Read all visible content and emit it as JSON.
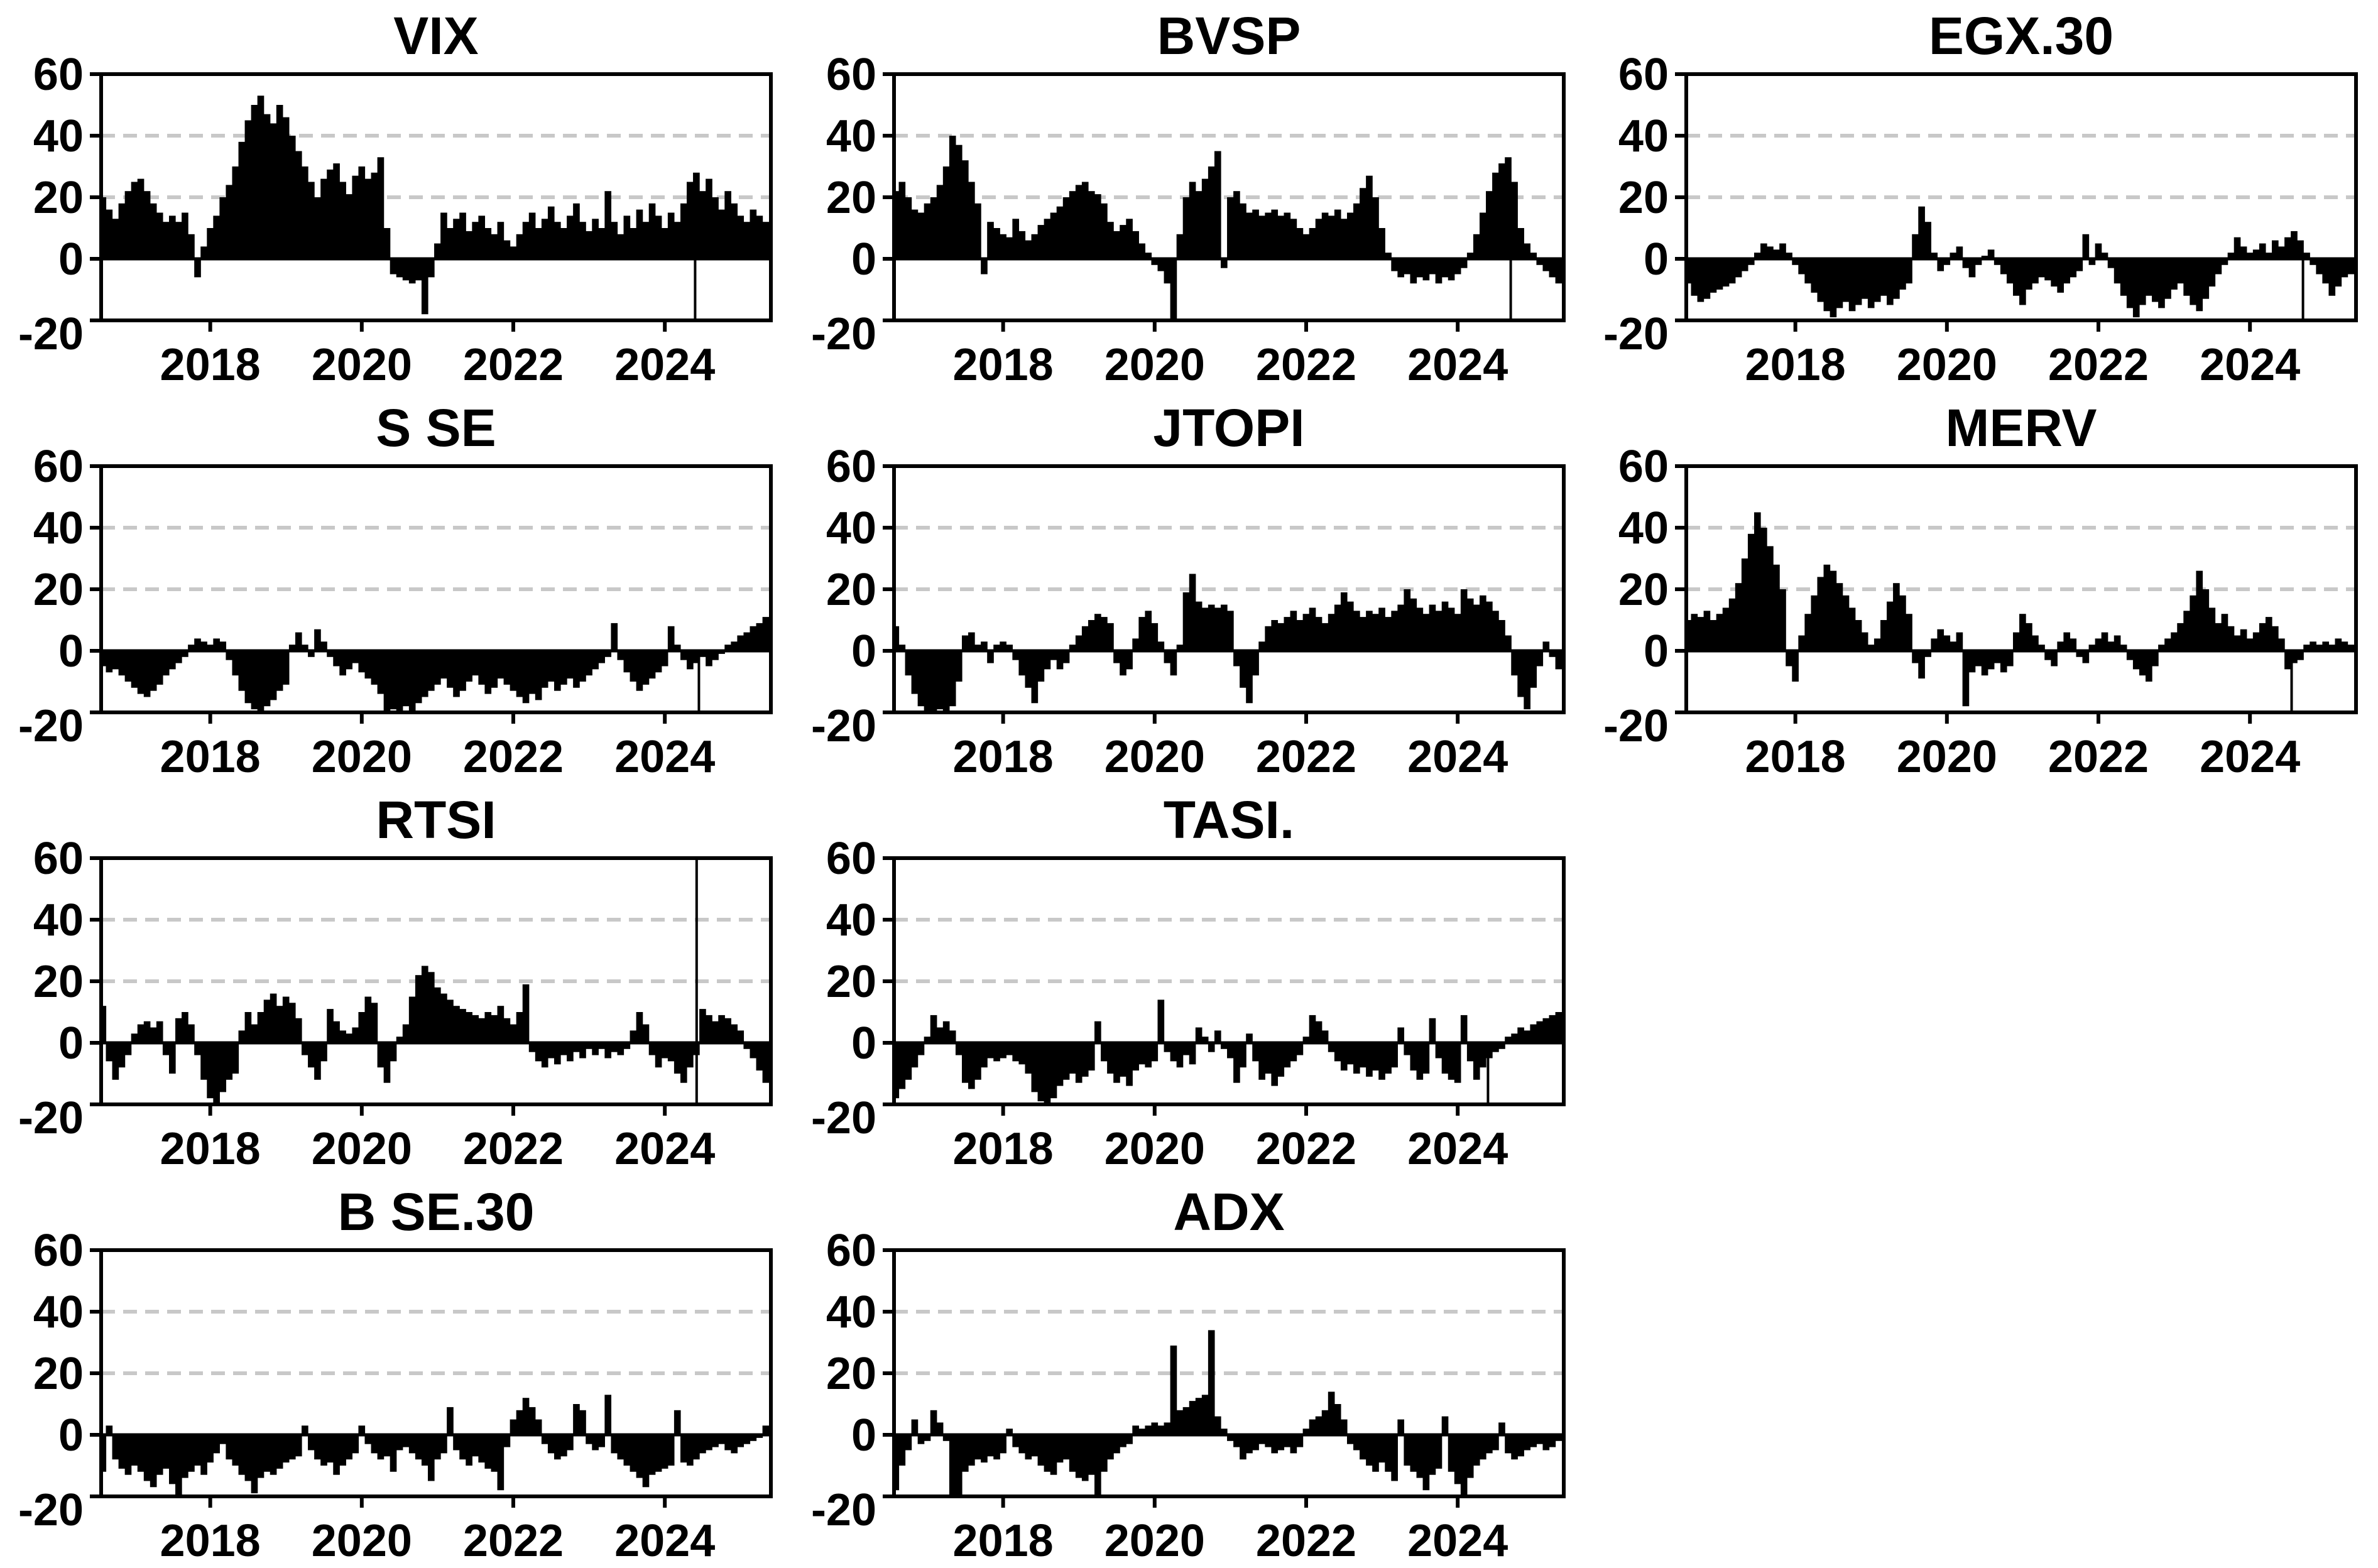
{
  "figure": {
    "background": "#ffffff",
    "bar_color": "#000000",
    "axis_color": "#000000",
    "grid_color": "#c8c8c8",
    "layout": {
      "rows": 4,
      "cols": 3
    }
  },
  "axes": {
    "xlim": [
      2016.56,
      2025.4
    ],
    "ylim": [
      -20,
      60
    ],
    "xticks": [
      2018,
      2020,
      2022,
      2024
    ],
    "yticks": [
      60,
      40,
      20,
      0,
      -20
    ],
    "grid_y": [
      40,
      20
    ],
    "grid_style": "dashed",
    "zero_line": 0
  },
  "chart_data": [
    {
      "type": "bar",
      "title": "VIX",
      "row": 0,
      "col": 0,
      "x_start": 2016.583,
      "x_step": 0.083333,
      "values": [
        20,
        16,
        13,
        18,
        22,
        25,
        26,
        22,
        18,
        15,
        12,
        14,
        12,
        15,
        8,
        -6,
        4,
        10,
        14,
        20,
        24,
        30,
        38,
        45,
        50,
        53,
        47,
        44,
        50,
        46,
        40,
        35,
        30,
        25,
        20,
        26,
        29,
        31,
        25,
        21,
        27,
        30,
        26,
        28,
        33,
        10,
        -5,
        -6,
        -7,
        -8,
        -7,
        -18,
        -6,
        5,
        15,
        10,
        13,
        15,
        9,
        12,
        14,
        10,
        8,
        12,
        6,
        4,
        8,
        12,
        15,
        10,
        13,
        17,
        12,
        10,
        14,
        18,
        12,
        9,
        13,
        10,
        22,
        12,
        8,
        14,
        10,
        16,
        12,
        18,
        14,
        10,
        15,
        12,
        18,
        25,
        28,
        22,
        26,
        20,
        16,
        22,
        18,
        14,
        12,
        16,
        14,
        12
      ],
      "vline": {
        "x": 2024.4,
        "from": 0,
        "to": -20
      }
    },
    {
      "type": "bar",
      "title": "BVSP",
      "row": 0,
      "col": 1,
      "x_start": 2016.583,
      "x_step": 0.083333,
      "values": [
        22,
        25,
        20,
        16,
        15,
        18,
        20,
        24,
        30,
        40,
        37,
        32,
        25,
        18,
        -5,
        12,
        10,
        8,
        7,
        13,
        9,
        6,
        8,
        11,
        13,
        15,
        17,
        20,
        22,
        24,
        25,
        22,
        21,
        18,
        12,
        9,
        11,
        13,
        9,
        5,
        2,
        -2,
        -4,
        -8,
        -20,
        8,
        20,
        25,
        22,
        26,
        30,
        35,
        -3,
        20,
        22,
        18,
        15,
        16,
        14,
        15,
        16,
        14,
        15,
        13,
        10,
        8,
        10,
        13,
        15,
        14,
        16,
        13,
        15,
        18,
        23,
        27,
        20,
        10,
        2,
        -4,
        -6,
        -5,
        -8,
        -6,
        -7,
        -5,
        -8,
        -6,
        -7,
        -5,
        -3,
        2,
        8,
        15,
        22,
        28,
        31,
        33,
        25,
        10,
        5,
        2,
        -2,
        -4,
        -6,
        -8
      ],
      "vline": {
        "x": 2024.7,
        "from": 0,
        "to": -20
      }
    },
    {
      "type": "bar",
      "title": "EGX.30",
      "row": 0,
      "col": 2,
      "x_start": 2016.583,
      "x_step": 0.083333,
      "values": [
        -8,
        -12,
        -14,
        -13,
        -11,
        -10,
        -9,
        -8,
        -6,
        -4,
        -2,
        2,
        5,
        4,
        3,
        5,
        2,
        -2,
        -5,
        -8,
        -11,
        -14,
        -17,
        -19,
        -16,
        -14,
        -17,
        -15,
        -13,
        -16,
        -14,
        -12,
        -15,
        -13,
        -10,
        -8,
        8,
        17,
        12,
        2,
        -4,
        -2,
        2,
        4,
        -3,
        -6,
        -2,
        1,
        3,
        -2,
        -5,
        -8,
        -12,
        -15,
        -10,
        -8,
        -6,
        -7,
        -9,
        -11,
        -8,
        -6,
        -4,
        8,
        -2,
        5,
        2,
        -3,
        -8,
        -12,
        -16,
        -19,
        -15,
        -12,
        -14,
        -16,
        -13,
        -10,
        -8,
        -12,
        -15,
        -17,
        -13,
        -9,
        -5,
        -2,
        2,
        7,
        4,
        2,
        3,
        5,
        2,
        6,
        4,
        7,
        9,
        6,
        2,
        -2,
        -5,
        -8,
        -12,
        -9,
        -6,
        -5
      ],
      "vline": {
        "x": 2024.7,
        "from": 0,
        "to": -20
      }
    },
    {
      "type": "bar",
      "title": "S SE",
      "row": 1,
      "col": 0,
      "x_start": 2016.583,
      "x_step": 0.083333,
      "values": [
        -5,
        -7,
        -6,
        -8,
        -10,
        -12,
        -14,
        -15,
        -13,
        -11,
        -8,
        -6,
        -4,
        -2,
        2,
        4,
        3,
        2,
        4,
        3,
        -3,
        -8,
        -13,
        -17,
        -19,
        -20,
        -18,
        -16,
        -13,
        -11,
        2,
        6,
        2,
        -2,
        7,
        3,
        -2,
        -5,
        -8,
        -6,
        -4,
        -7,
        -9,
        -11,
        -14,
        -20,
        -19,
        -20,
        -18,
        -20,
        -17,
        -15,
        -13,
        -11,
        -9,
        -12,
        -15,
        -13,
        -10,
        -8,
        -11,
        -14,
        -12,
        -9,
        -11,
        -13,
        -15,
        -17,
        -14,
        -16,
        -12,
        -10,
        -13,
        -11,
        -9,
        -12,
        -10,
        -8,
        -6,
        -4,
        -2,
        9,
        -3,
        -7,
        -10,
        -13,
        -11,
        -9,
        -7,
        -5,
        8,
        2,
        -3,
        -6,
        -4,
        -2,
        -5,
        -3,
        -1,
        2,
        3,
        5,
        6,
        8,
        9,
        11
      ],
      "vline": {
        "x": 2024.45,
        "from": 0,
        "to": -20
      }
    },
    {
      "type": "bar",
      "title": "JTOPI",
      "row": 1,
      "col": 1,
      "x_start": 2016.583,
      "x_step": 0.083333,
      "values": [
        8,
        2,
        -8,
        -14,
        -18,
        -20,
        -20,
        -19,
        -20,
        -18,
        -10,
        5,
        6,
        2,
        3,
        -4,
        2,
        3,
        2,
        -3,
        -8,
        -12,
        -17,
        -10,
        -6,
        -3,
        -6,
        -4,
        2,
        5,
        8,
        10,
        12,
        11,
        9,
        -4,
        -8,
        -6,
        4,
        11,
        13,
        9,
        3,
        -4,
        -8,
        2,
        19,
        25,
        16,
        14,
        15,
        14,
        15,
        13,
        -5,
        -12,
        -17,
        -8,
        3,
        8,
        10,
        9,
        11,
        13,
        10,
        12,
        14,
        11,
        9,
        12,
        15,
        19,
        16,
        13,
        11,
        13,
        12,
        14,
        11,
        13,
        15,
        20,
        17,
        14,
        12,
        15,
        13,
        16,
        14,
        12,
        20,
        17,
        15,
        18,
        16,
        13,
        10,
        5,
        -8,
        -15,
        -19,
        -12,
        -5,
        3,
        -2,
        -6
      ],
      "vline": null
    },
    {
      "type": "bar",
      "title": "MERV",
      "row": 1,
      "col": 2,
      "x_start": 2016.583,
      "x_step": 0.083333,
      "values": [
        10,
        12,
        11,
        13,
        10,
        12,
        14,
        17,
        22,
        30,
        38,
        45,
        40,
        34,
        28,
        20,
        -5,
        -10,
        5,
        12,
        18,
        24,
        28,
        26,
        22,
        18,
        14,
        10,
        6,
        2,
        4,
        10,
        16,
        22,
        18,
        12,
        -4,
        -9,
        -2,
        4,
        7,
        5,
        3,
        6,
        -18,
        -7,
        -5,
        -8,
        -6,
        -4,
        -7,
        -5,
        6,
        12,
        9,
        5,
        2,
        -3,
        -5,
        3,
        6,
        4,
        -2,
        -4,
        2,
        4,
        6,
        3,
        5,
        2,
        -3,
        -6,
        -8,
        -10,
        -5,
        2,
        4,
        6,
        9,
        13,
        18,
        26,
        20,
        14,
        9,
        12,
        8,
        5,
        7,
        4,
        6,
        9,
        11,
        8,
        4,
        -6,
        -4,
        -3,
        2,
        3,
        2,
        3,
        2,
        4,
        3,
        2
      ],
      "vline": {
        "x": 2024.55,
        "from": 0,
        "to": -20
      }
    },
    {
      "type": "bar",
      "title": "RTSI",
      "row": 2,
      "col": 0,
      "x_start": 2016.583,
      "x_step": 0.083333,
      "values": [
        12,
        -6,
        -12,
        -8,
        -4,
        3,
        6,
        7,
        5,
        7,
        -4,
        -10,
        8,
        10,
        6,
        -4,
        -12,
        -18,
        -20,
        -16,
        -12,
        -10,
        4,
        10,
        6,
        10,
        14,
        16,
        12,
        15,
        13,
        8,
        -4,
        -8,
        -12,
        -6,
        11,
        7,
        4,
        3,
        5,
        10,
        15,
        13,
        -8,
        -13,
        -6,
        2,
        6,
        15,
        22,
        25,
        23,
        18,
        16,
        14,
        12,
        11,
        10,
        9,
        8,
        10,
        9,
        12,
        8,
        6,
        10,
        19,
        -3,
        -6,
        -8,
        -5,
        -7,
        -4,
        -6,
        -3,
        -5,
        -2,
        -4,
        -2,
        -5,
        -3,
        -4,
        -2,
        4,
        10,
        6,
        -4,
        -8,
        -5,
        -6,
        -10,
        -13,
        -8,
        -4,
        11,
        9,
        7,
        9,
        8,
        6,
        4,
        -2,
        -5,
        -9,
        -13
      ],
      "vline": {
        "x": 2024.42,
        "from": 60,
        "to": -20
      }
    },
    {
      "type": "bar",
      "title": "TASI.",
      "row": 2,
      "col": 1,
      "x_start": 2016.583,
      "x_step": 0.083333,
      "values": [
        -18,
        -15,
        -12,
        -8,
        -4,
        2,
        9,
        5,
        7,
        4,
        -4,
        -13,
        -15,
        -12,
        -8,
        -5,
        -6,
        -5,
        -4,
        -6,
        -7,
        -10,
        -16,
        -19,
        -20,
        -18,
        -14,
        -12,
        -10,
        -13,
        -11,
        -9,
        7,
        -6,
        -10,
        -13,
        -11,
        -14,
        -9,
        -7,
        -8,
        -6,
        14,
        -3,
        -6,
        -8,
        -4,
        -7,
        5,
        2,
        -3,
        4,
        -2,
        -5,
        -13,
        -8,
        3,
        -6,
        -12,
        -10,
        -14,
        -11,
        -8,
        -6,
        -4,
        2,
        9,
        7,
        4,
        -3,
        -6,
        -9,
        -7,
        -10,
        -8,
        -11,
        -9,
        -12,
        -10,
        -8,
        5,
        -4,
        -9,
        -12,
        -10,
        8,
        -5,
        -10,
        -12,
        -13,
        9,
        -6,
        -12,
        -8,
        -5,
        -3,
        -2,
        2,
        3,
        5,
        4,
        6,
        7,
        8,
        9,
        10
      ],
      "vline": {
        "x": 2024.4,
        "from": 0,
        "to": -20
      }
    },
    {
      "type": "bar",
      "title": "B SE.30",
      "row": 3,
      "col": 0,
      "x_start": 2016.583,
      "x_step": 0.083333,
      "values": [
        -12,
        3,
        -8,
        -11,
        -13,
        -10,
        -12,
        -15,
        -17,
        -13,
        -11,
        -16,
        -20,
        -14,
        -12,
        -10,
        -13,
        -9,
        -6,
        -3,
        -8,
        -10,
        -13,
        -15,
        -19,
        -14,
        -12,
        -13,
        -11,
        -9,
        -8,
        -7,
        3,
        -5,
        -8,
        -10,
        -9,
        -13,
        -10,
        -8,
        -6,
        3,
        -3,
        -6,
        -8,
        -7,
        -12,
        -5,
        -4,
        -6,
        -8,
        -10,
        -15,
        -8,
        -6,
        9,
        -5,
        -8,
        -10,
        -7,
        -9,
        -11,
        -12,
        -18,
        -4,
        5,
        8,
        12,
        9,
        5,
        -3,
        -6,
        -8,
        -7,
        -5,
        10,
        8,
        -3,
        -5,
        -4,
        13,
        -6,
        -8,
        -10,
        -12,
        -14,
        -17,
        -13,
        -12,
        -11,
        -10,
        8,
        -9,
        -10,
        -8,
        -6,
        -5,
        -4,
        -3,
        -5,
        -6,
        -4,
        -3,
        -2,
        -1,
        3
      ],
      "vline": null
    },
    {
      "type": "bar",
      "title": "ADX",
      "row": 3,
      "col": 1,
      "x_start": 2016.583,
      "x_step": 0.083333,
      "values": [
        -18,
        -10,
        -5,
        5,
        -3,
        -2,
        8,
        4,
        -2,
        -20,
        -20,
        -12,
        -10,
        -8,
        -9,
        -7,
        -8,
        -6,
        2,
        -4,
        -6,
        -8,
        -7,
        -10,
        -12,
        -13,
        -9,
        -8,
        -12,
        -14,
        -15,
        -13,
        -20,
        -12,
        -8,
        -6,
        -4,
        -3,
        3,
        2,
        3,
        4,
        3,
        4,
        29,
        8,
        9,
        11,
        12,
        13,
        34,
        6,
        2,
        -2,
        -4,
        -8,
        -6,
        -5,
        -3,
        -4,
        -6,
        -5,
        -4,
        -6,
        -4,
        2,
        5,
        6,
        8,
        14,
        10,
        5,
        -3,
        -5,
        -8,
        -10,
        -12,
        -9,
        -12,
        -15,
        5,
        -10,
        -12,
        -14,
        -18,
        -13,
        -11,
        6,
        -12,
        -16,
        -20,
        -14,
        -10,
        -8,
        -6,
        -5,
        4,
        -6,
        -8,
        -7,
        -5,
        -4,
        -3,
        -5,
        -4,
        -2
      ],
      "vline": null
    }
  ]
}
